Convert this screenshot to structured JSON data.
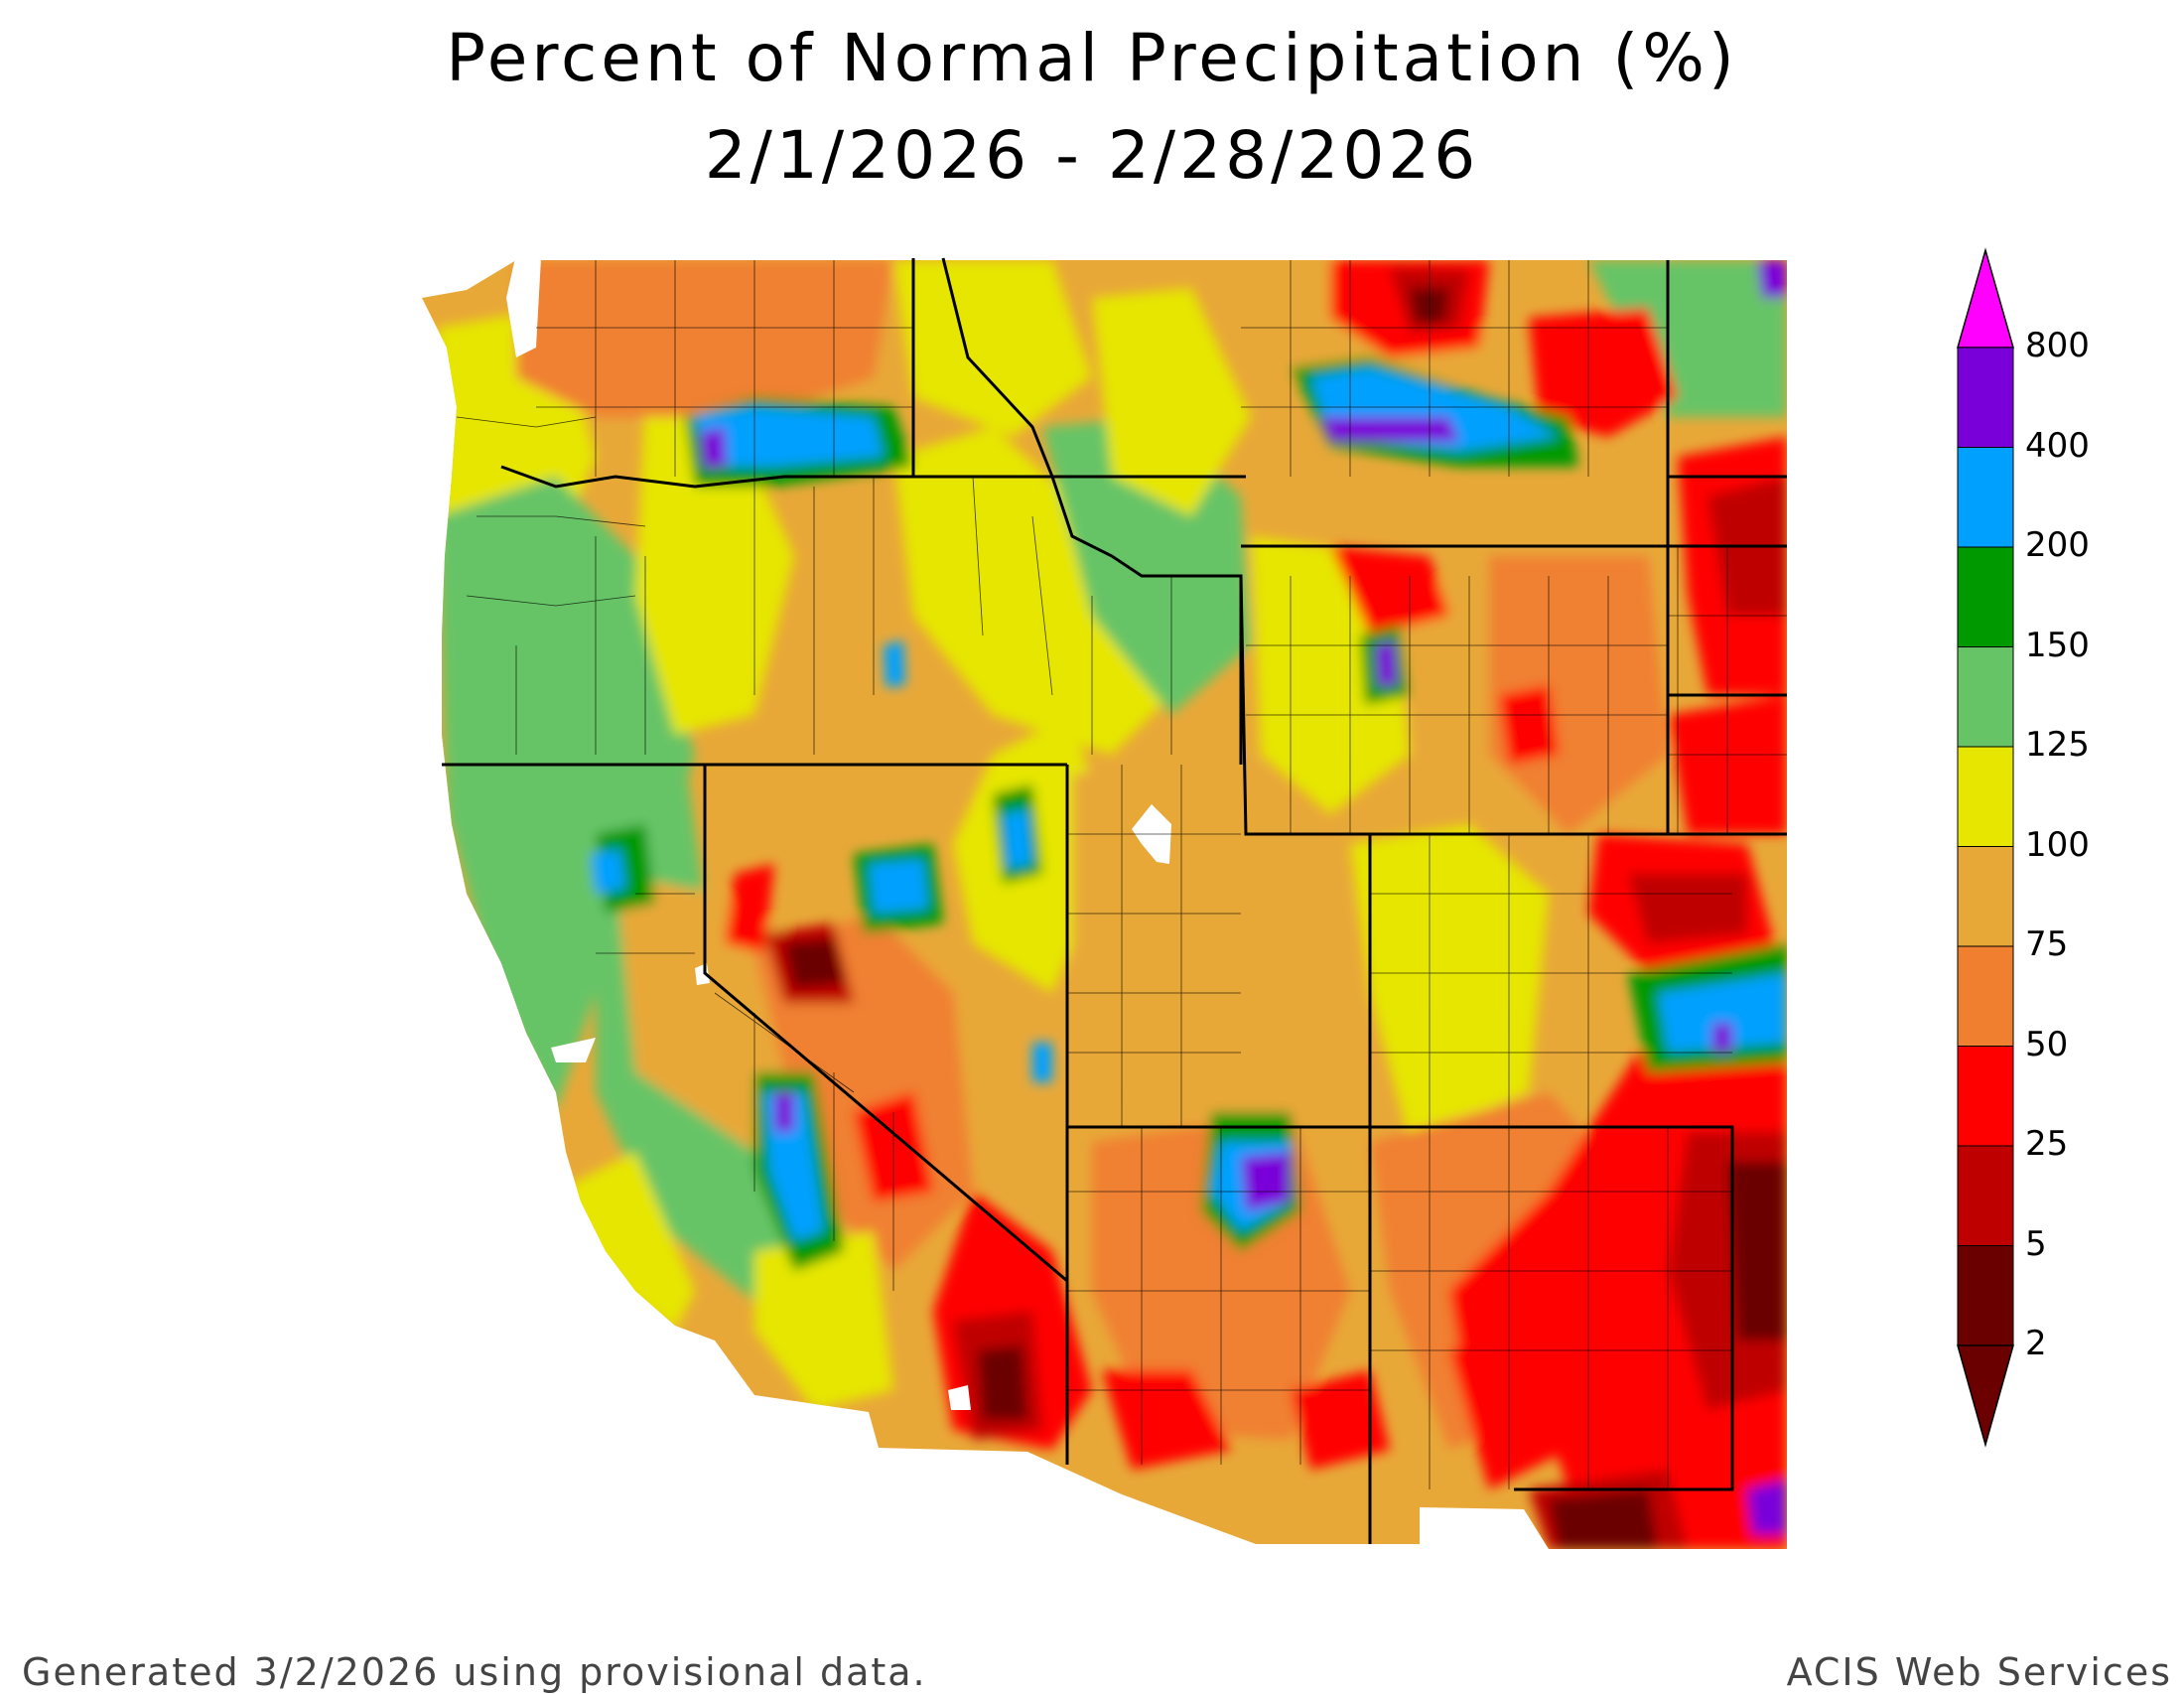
{
  "title_line1": "Percent of Normal Precipitation (%)",
  "title_line2": "2/1/2026 - 2/28/2026",
  "footer_left": "Generated 3/2/2026 using provisional data.",
  "footer_right": "ACIS Web Services",
  "legend": {
    "bins": [
      {
        "label": "2",
        "color": "#6b0000"
      },
      {
        "label": "5",
        "color": "#bf0000"
      },
      {
        "label": "25",
        "color": "#ff0000"
      },
      {
        "label": "50",
        "color": "#f08030"
      },
      {
        "label": "75",
        "color": "#e8a838"
      },
      {
        "label": "100",
        "color": "#e6e600"
      },
      {
        "label": "125",
        "color": "#66c466"
      },
      {
        "label": "150",
        "color": "#009900"
      },
      {
        "label": "200",
        "color": "#00a0ff"
      },
      {
        "label": "400",
        "color": "#7a00d9"
      },
      {
        "label": "800",
        "color": "#b000c8"
      }
    ],
    "top_arrow_color": "#ff00ff",
    "bottom_arrow_color": "#6b0000"
  }
}
